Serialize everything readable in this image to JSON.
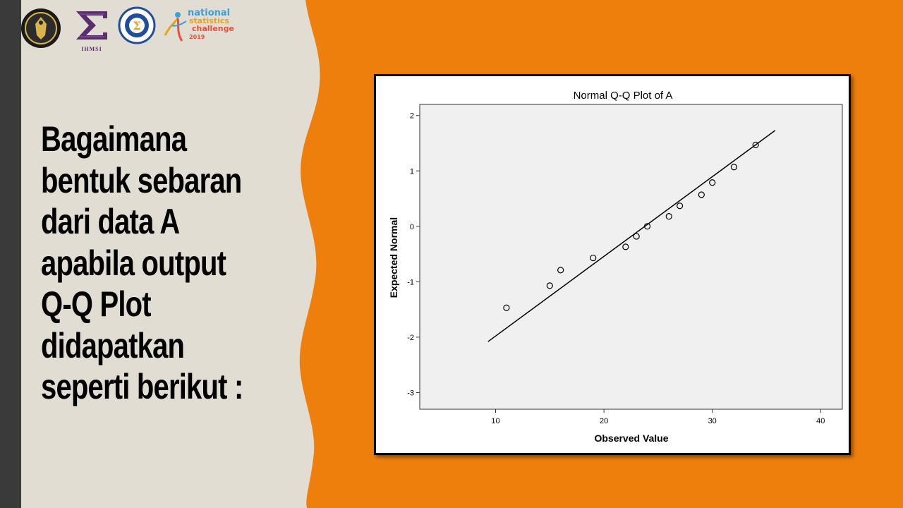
{
  "question": {
    "lines": [
      "Bagaimana",
      "bentuk sebaran",
      "dari data A",
      "apabila output",
      "Q-Q Plot",
      "didapatkan",
      "seperti berikut :"
    ]
  },
  "logos": {
    "imsi_text": "IHMSI",
    "nsc_line1": "national",
    "nsc_line2": "statistics",
    "nsc_line3": "challenge",
    "nsc_year": "2019"
  },
  "colors": {
    "background": "#ee7f0d",
    "panel": "#e2ddd3",
    "sidebar": "#3a3a3a"
  },
  "chart_data": {
    "type": "scatter",
    "title": "Normal Q-Q Plot of A",
    "xlabel": "Observed Value",
    "ylabel": "Expected Normal",
    "xlim": [
      3,
      42
    ],
    "ylim": [
      -3.3,
      2.2
    ],
    "x_ticks": [
      10,
      20,
      30,
      40
    ],
    "y_ticks": [
      2,
      1,
      0,
      -1,
      -2,
      -3
    ],
    "grid": false,
    "points": [
      {
        "x": 11,
        "y": -1.47
      },
      {
        "x": 15,
        "y": -1.07
      },
      {
        "x": 16,
        "y": -0.79
      },
      {
        "x": 19,
        "y": -0.57
      },
      {
        "x": 22,
        "y": -0.37
      },
      {
        "x": 23,
        "y": -0.18
      },
      {
        "x": 24,
        "y": 0.0
      },
      {
        "x": 26,
        "y": 0.18
      },
      {
        "x": 27,
        "y": 0.37
      },
      {
        "x": 29,
        "y": 0.57
      },
      {
        "x": 30,
        "y": 0.79
      },
      {
        "x": 32,
        "y": 1.07
      },
      {
        "x": 34,
        "y": 1.47
      }
    ],
    "reference_line": {
      "x": [
        9.3,
        35.8
      ],
      "y": [
        -2.08,
        1.73
      ]
    }
  }
}
